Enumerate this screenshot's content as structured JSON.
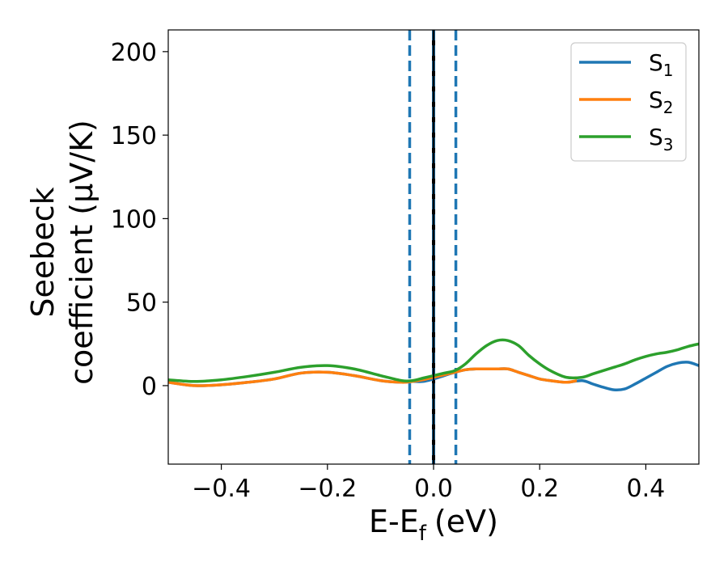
{
  "chart_data": {
    "type": "line",
    "xlabel": "E-E",
    "xlabel_sub": "f",
    "xlabel_unit": "(eV)",
    "ylabel_line1": "Seebeck",
    "ylabel_line2": "coefficient  (μV/K)",
    "xlim": [
      -0.5,
      0.5
    ],
    "ylim": [
      -47,
      213
    ],
    "xticks": [
      -0.4,
      -0.2,
      0.0,
      0.2,
      0.4
    ],
    "xtick_labels": [
      "−0.4",
      "−0.2",
      "0.0",
      "0.2",
      "0.4"
    ],
    "yticks": [
      0,
      50,
      100,
      150,
      200
    ],
    "ytick_labels": [
      "0",
      "50",
      "100",
      "150",
      "200"
    ],
    "legend_position": "top-right",
    "vlines": [
      {
        "x": -0.045,
        "style": "dashed",
        "color": "#1f77b4"
      },
      {
        "x": 0.0,
        "style": "solid",
        "color": "#000000"
      },
      {
        "x": 0.0,
        "style": "dashed",
        "color": "#1f77b4"
      },
      {
        "x": 0.042,
        "style": "dashed",
        "color": "#1f77b4"
      }
    ],
    "series": [
      {
        "name": "S",
        "sub": "1",
        "color": "#1f77b4",
        "x": [
          -0.5,
          -0.45,
          -0.4,
          -0.35,
          -0.3,
          -0.25,
          -0.2,
          -0.15,
          -0.1,
          -0.06,
          -0.04,
          -0.02,
          0.0,
          0.02,
          0.04,
          0.06,
          0.08,
          0.1,
          0.12,
          0.14,
          0.16,
          0.18,
          0.2,
          0.22,
          0.25,
          0.28,
          0.3,
          0.32,
          0.34,
          0.36,
          0.38,
          0.4,
          0.42,
          0.44,
          0.46,
          0.48,
          0.5
        ],
        "y": [
          2,
          0,
          0.5,
          2,
          4,
          7.5,
          8,
          6,
          3,
          2,
          2.5,
          2.5,
          4,
          6,
          8,
          9.5,
          10,
          10,
          10,
          10,
          8,
          6,
          4,
          3,
          2,
          3,
          1,
          -1,
          -2.5,
          -2,
          1,
          4.5,
          8,
          11.5,
          13.5,
          14,
          12
        ]
      },
      {
        "name": "S",
        "sub": "2",
        "color": "#ff7f0e",
        "x": [
          -0.5,
          -0.45,
          -0.4,
          -0.35,
          -0.3,
          -0.25,
          -0.2,
          -0.15,
          -0.1,
          -0.06,
          -0.04,
          -0.02,
          0.0,
          0.02,
          0.04,
          0.06,
          0.08,
          0.1,
          0.12,
          0.14,
          0.16,
          0.18,
          0.2,
          0.22,
          0.25,
          0.27
        ],
        "y": [
          2,
          0,
          0.5,
          2,
          4,
          7.5,
          8,
          6,
          3,
          2,
          2.5,
          3.5,
          5,
          6.5,
          8,
          9.5,
          10,
          10,
          10,
          10,
          8,
          6,
          4,
          3,
          2,
          3
        ]
      },
      {
        "name": "S",
        "sub": "3",
        "color": "#2ca02c",
        "x": [
          -0.5,
          -0.45,
          -0.4,
          -0.35,
          -0.3,
          -0.25,
          -0.2,
          -0.15,
          -0.1,
          -0.06,
          -0.04,
          -0.02,
          0.0,
          0.02,
          0.04,
          0.06,
          0.08,
          0.1,
          0.12,
          0.14,
          0.16,
          0.18,
          0.2,
          0.22,
          0.25,
          0.28,
          0.3,
          0.32,
          0.34,
          0.36,
          0.38,
          0.4,
          0.42,
          0.44,
          0.46,
          0.48,
          0.5
        ],
        "y": [
          3.5,
          2.5,
          3.5,
          5.5,
          8,
          11,
          12,
          10,
          6,
          3,
          3,
          4.5,
          6,
          7.5,
          9,
          13,
          19,
          24,
          27,
          27,
          24,
          18,
          13,
          9,
          5,
          5,
          7,
          9,
          11,
          13,
          15.5,
          17.5,
          19,
          20,
          21.5,
          23.5,
          25
        ]
      }
    ]
  }
}
